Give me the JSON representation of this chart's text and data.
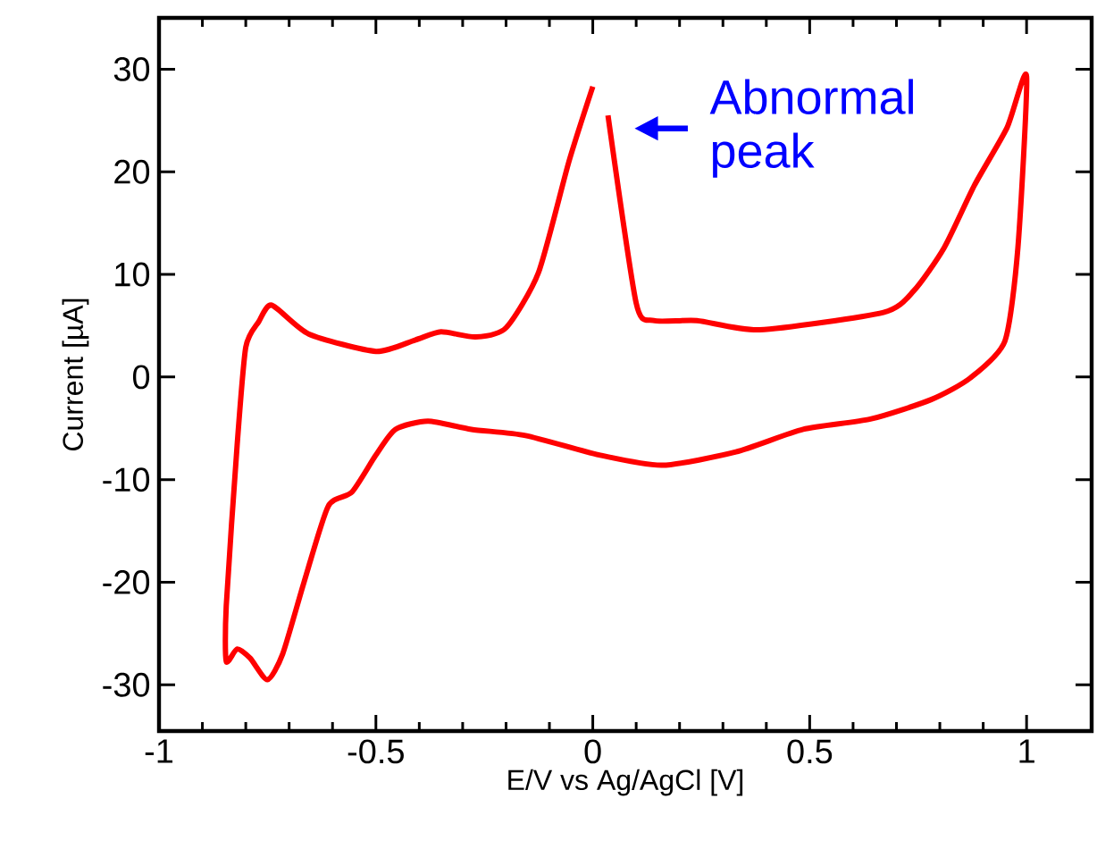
{
  "chart_data": {
    "type": "line",
    "xlabel": "E/V vs Ag/AgCl [V]",
    "ylabel": "Current [µA]",
    "xlim": [
      -1,
      1.15
    ],
    "ylim": [
      -34.5,
      35
    ],
    "xticks": [
      -1,
      -0.5,
      0,
      0.5,
      1
    ],
    "yticks": [
      -30,
      -20,
      -10,
      0,
      10,
      20,
      30
    ],
    "grid": false,
    "marker": "none",
    "line_style": "solid",
    "annotations": [
      "Abnormal peak"
    ],
    "series": [
      {
        "color": "#ff0000",
        "x": [
          0.035,
          0.1,
          0.14,
          0.24,
          0.385,
          0.67,
          0.74,
          0.81,
          0.88,
          0.955,
          1.0,
          0.98,
          0.95,
          0.87,
          0.78,
          0.64,
          0.485,
          0.33,
          0.16,
          0.015,
          -0.155,
          -0.28,
          -0.38,
          -0.455,
          -0.5,
          -0.555,
          -0.61,
          -0.665,
          -0.715,
          -0.75,
          -0.79,
          -0.82,
          -0.845,
          -0.845,
          -0.82,
          -0.8,
          -0.77,
          -0.74,
          -0.655,
          -0.5,
          -0.41,
          -0.35,
          -0.27,
          -0.2,
          -0.125,
          -0.055,
          0.0
        ],
        "values": [
          25.5,
          7.2,
          5.5,
          5.5,
          4.6,
          6.3,
          8.4,
          12.6,
          18.7,
          24.3,
          29.3,
          12.6,
          3.5,
          -0.1,
          -2.2,
          -4.1,
          -5.1,
          -7.3,
          -8.6,
          -7.6,
          -5.7,
          -5.1,
          -4.3,
          -5.1,
          -7.6,
          -11.2,
          -12.6,
          -19.9,
          -27,
          -29.5,
          -27.4,
          -26.5,
          -27.7,
          -22.3,
          -6.7,
          2.9,
          5.4,
          7.0,
          4.2,
          2.5,
          3.6,
          4.4,
          3.9,
          4.8,
          10.2,
          21,
          28.3
        ]
      }
    ]
  }
}
